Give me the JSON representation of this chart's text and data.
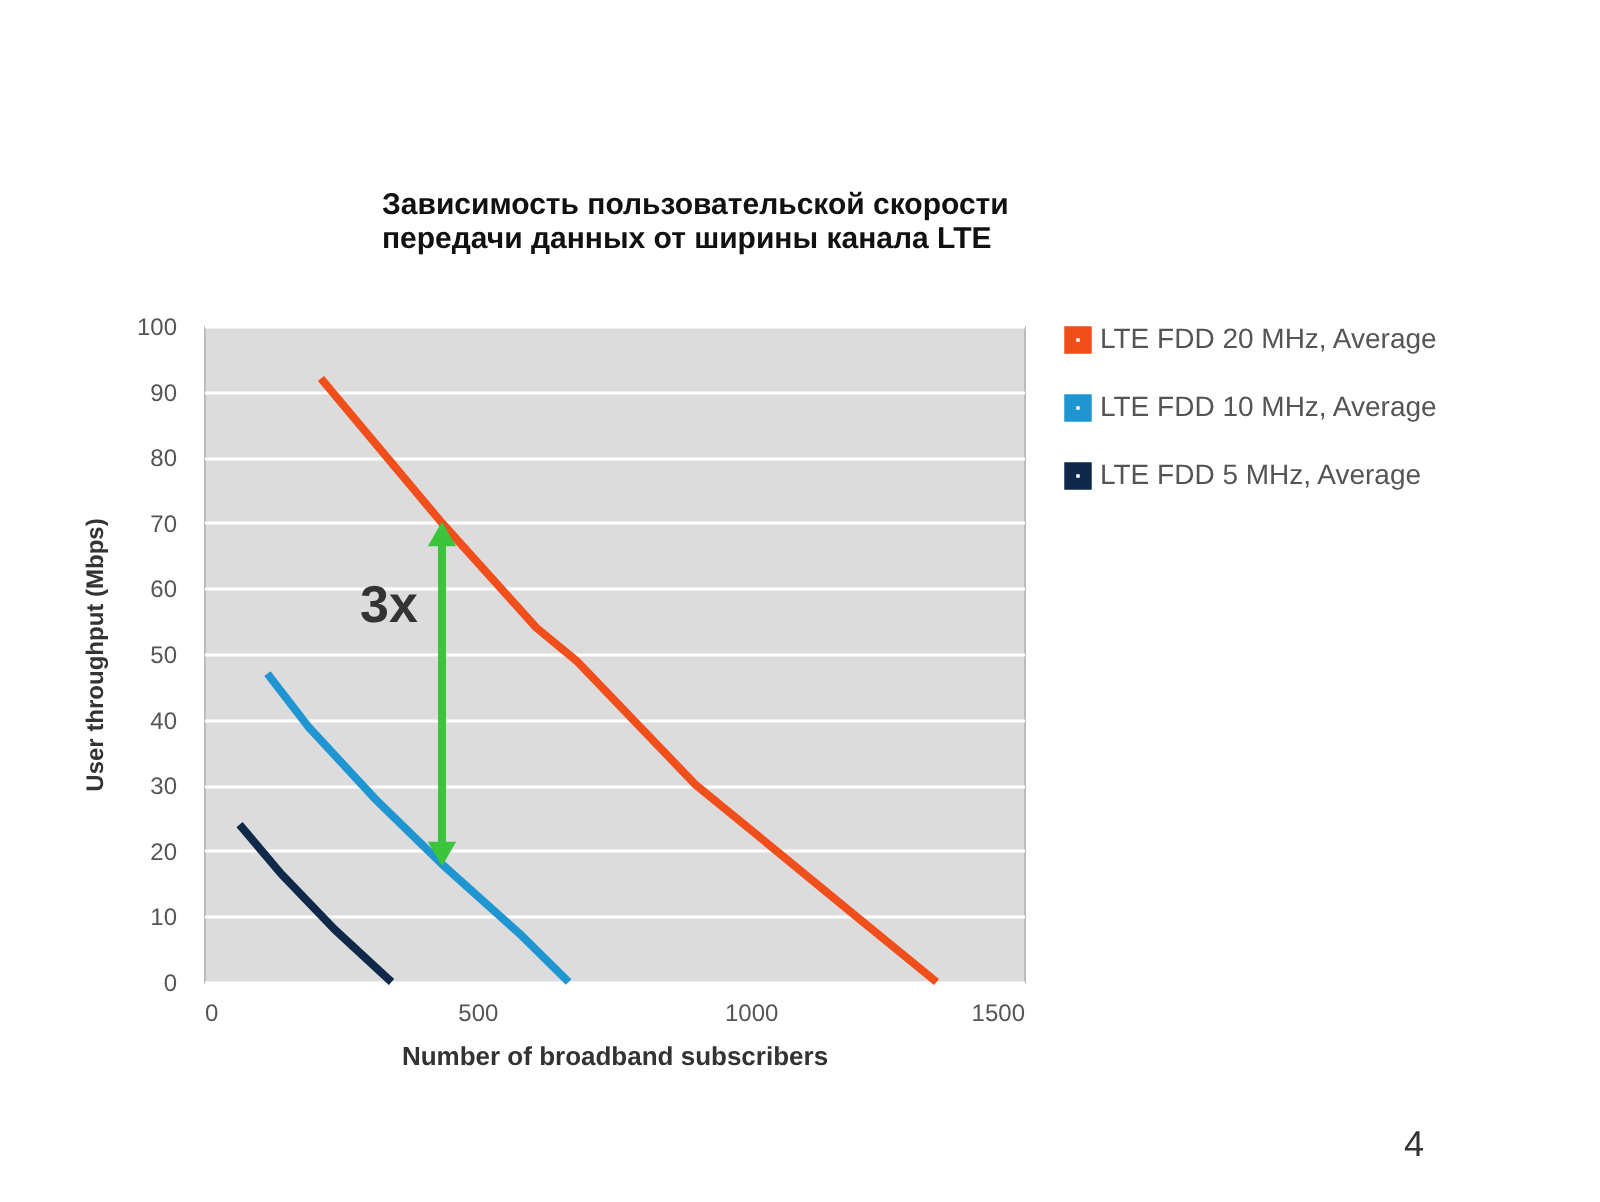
{
  "chart_data": {
    "type": "line",
    "title": "Зависимость пользовательской скорости\nпередачи данных от ширины канала LTE",
    "xlabel": "Number of broadband subscribers",
    "ylabel": "User throughput (Mbps)",
    "series": [
      {
        "name": "LTE FDD 20 MHz, Average",
        "color": "#f04e1a",
        "x": [
          214,
          435,
          608,
          681,
          900,
          1047,
          1193,
          1340
        ],
        "values": [
          92,
          70,
          54,
          49,
          30,
          20,
          10,
          0
        ]
      },
      {
        "name": "LTE FDD 10 MHz, Average",
        "color": "#1f95d2",
        "x": [
          116,
          190,
          312,
          435,
          582,
          667
        ],
        "values": [
          47,
          39,
          28,
          18,
          7,
          0
        ]
      },
      {
        "name": "LTE FDD 5 MHz, Average",
        "color": "#10294a",
        "x": [
          65,
          141,
          239,
          343
        ],
        "values": [
          24,
          16.5,
          8,
          0
        ]
      }
    ],
    "xlim": [
      0,
      1500
    ],
    "xticks": [
      0,
      500,
      1000,
      1500
    ],
    "ylim": [
      0,
      100
    ],
    "yticks": [
      0,
      10,
      20,
      30,
      40,
      50,
      60,
      70,
      80,
      90,
      100
    ],
    "grid": "y",
    "legend": "top right",
    "marker": "none",
    "line_style": "solid",
    "annotations": [
      "3x",
      "4"
    ]
  }
}
